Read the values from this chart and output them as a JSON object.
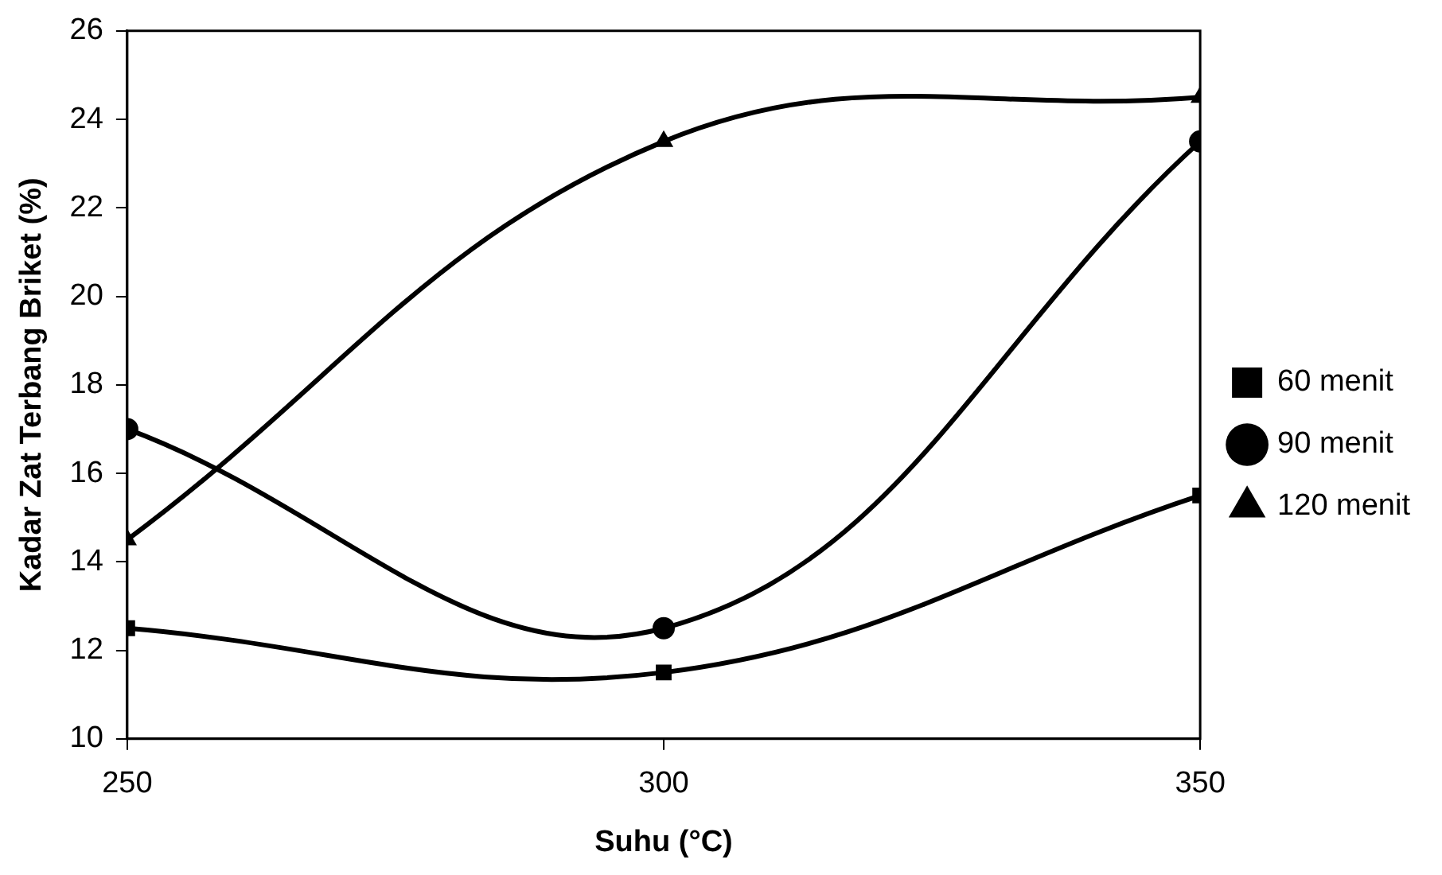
{
  "chart_data": {
    "type": "line",
    "xlabel": "Suhu (°C)",
    "ylabel": "Kadar Zat Terbang Briket (%)",
    "x": [
      250,
      300,
      350
    ],
    "xlim": [
      250,
      350
    ],
    "xticks": [
      250,
      300,
      350
    ],
    "ylim": [
      10,
      26
    ],
    "yticks": [
      10,
      12,
      14,
      16,
      18,
      20,
      22,
      24,
      26
    ],
    "series": [
      {
        "name": "60 menit",
        "color": "#000000",
        "marker": "square",
        "values": [
          12.5,
          11.5,
          15.5
        ]
      },
      {
        "name": "90 menit",
        "color": "#000000",
        "marker": "circle",
        "values": [
          17,
          12.5,
          23.5
        ]
      },
      {
        "name": "120 menit",
        "color": "#000000",
        "marker": "triangle",
        "values": [
          14.5,
          23.5,
          24.5
        ]
      }
    ],
    "grid": false,
    "legend": "right",
    "line_style": "solid"
  }
}
